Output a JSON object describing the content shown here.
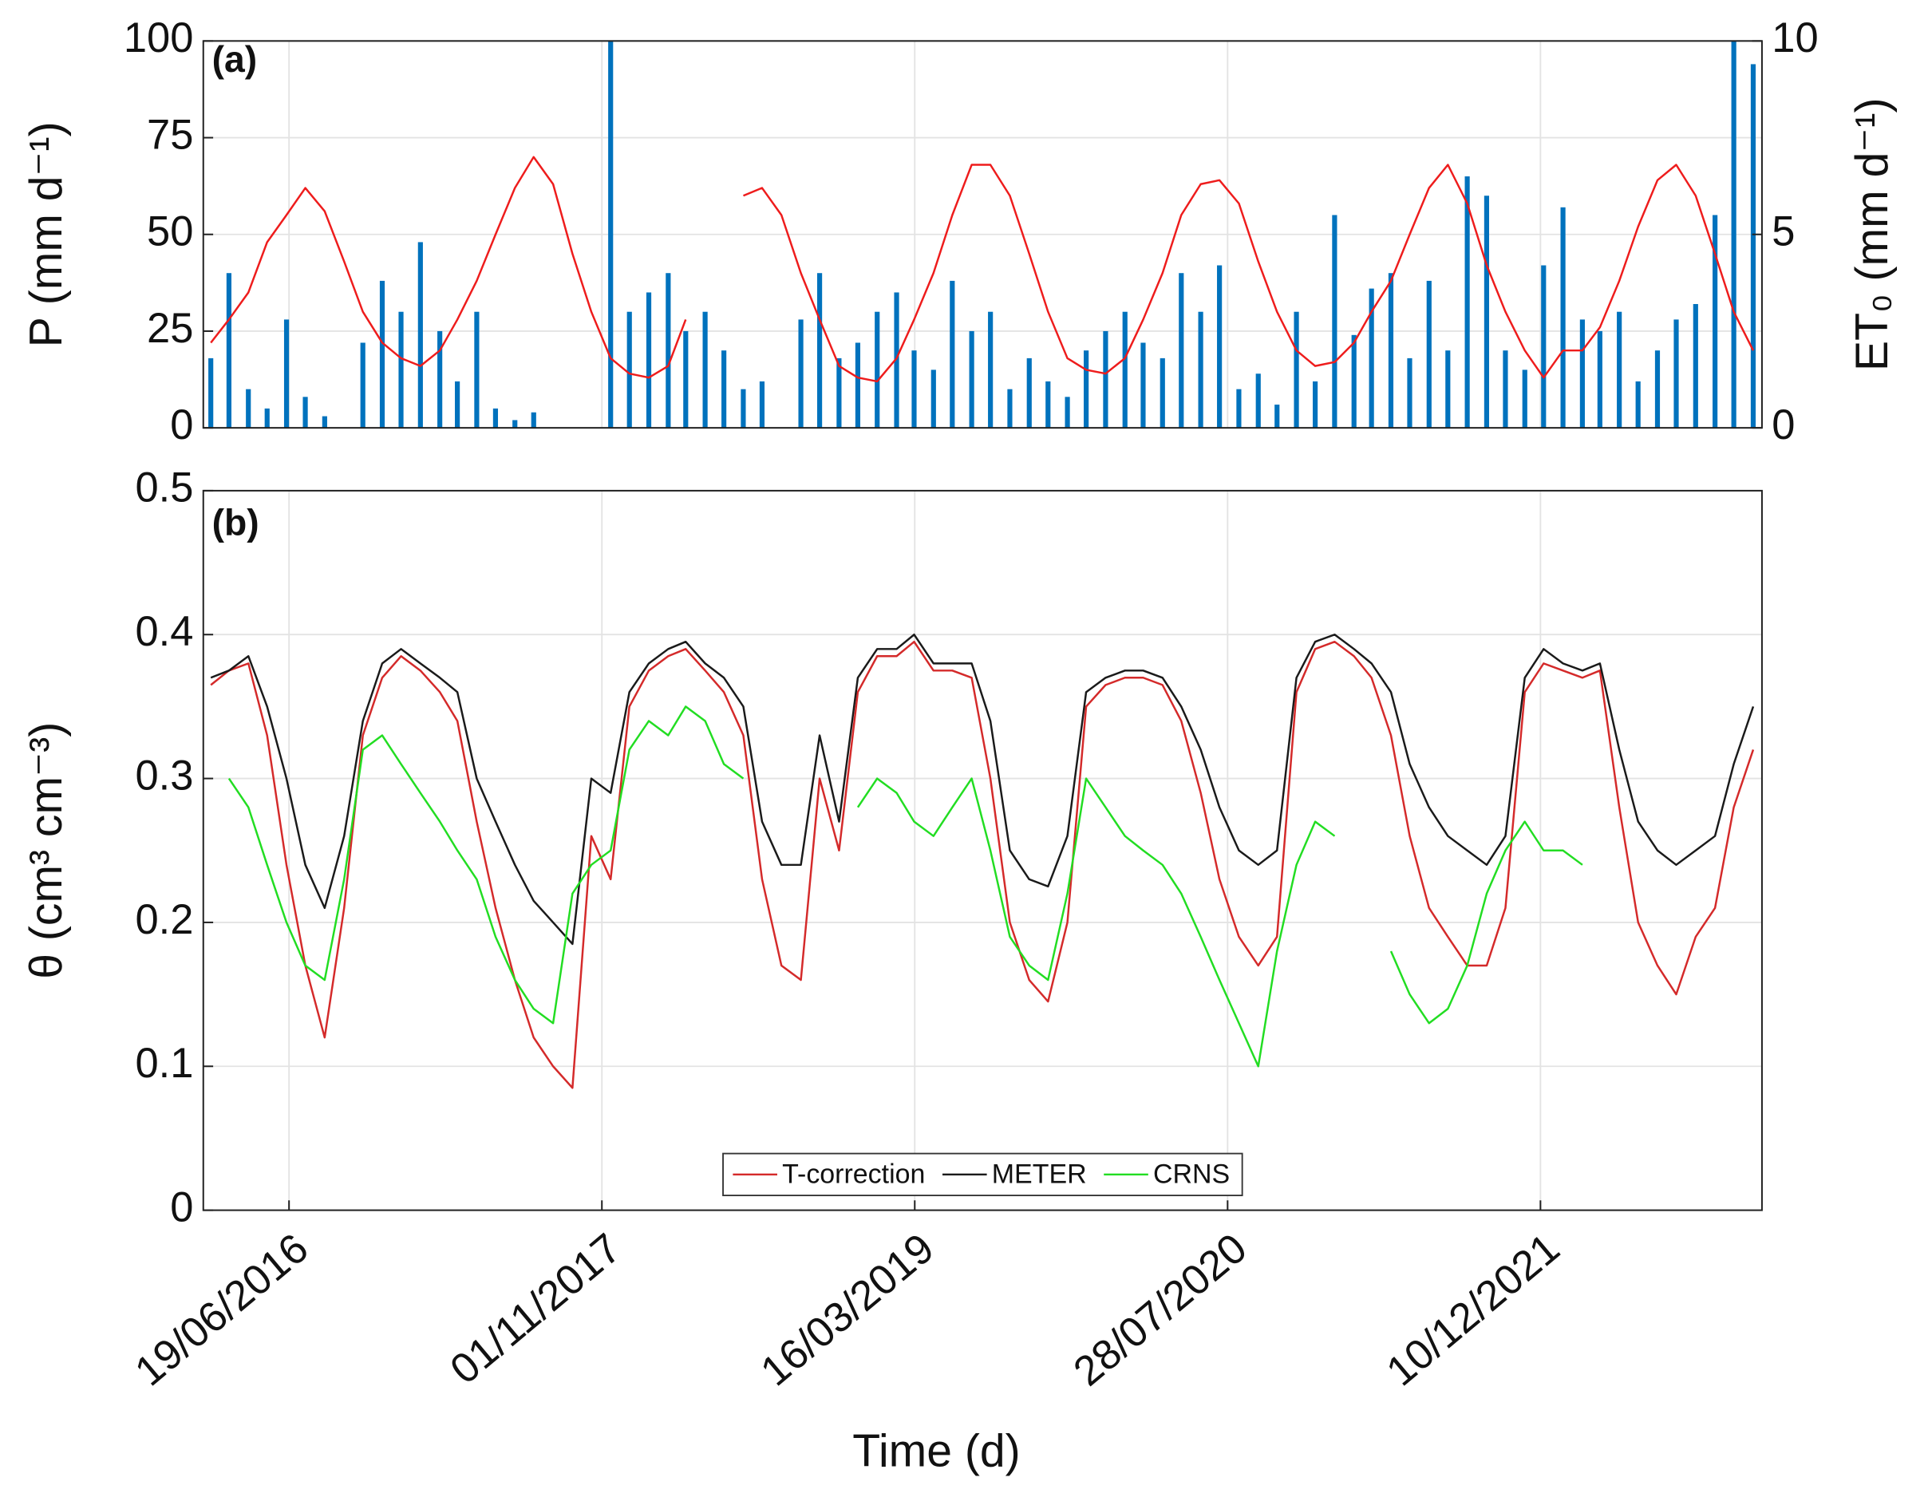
{
  "chart_data": [
    {
      "type": "bar",
      "panel_label": "(a)",
      "ylabel": "P (mm d⁻¹)",
      "y2label": "ET₀ (mm d⁻¹)",
      "x": [
        "15/02/2016",
        "15/03/2016",
        "15/04/2016",
        "15/05/2016",
        "15/06/2016",
        "15/07/2016",
        "15/08/2016",
        "15/09/2016",
        "15/10/2016",
        "15/11/2016",
        "15/12/2016",
        "15/01/2017",
        "15/02/2017",
        "15/03/2017",
        "15/04/2017",
        "15/05/2017",
        "15/06/2017",
        "15/07/2017",
        "15/08/2017",
        "15/09/2017",
        "15/10/2017",
        "15/11/2017",
        "15/12/2017",
        "15/01/2018",
        "15/02/2018",
        "15/03/2018",
        "15/04/2018",
        "15/05/2018",
        "15/06/2018",
        "15/07/2018",
        "15/08/2018",
        "15/09/2018",
        "15/10/2018",
        "15/11/2018",
        "15/12/2018",
        "15/01/2019",
        "15/02/2019",
        "15/03/2019",
        "15/04/2019",
        "15/05/2019",
        "15/06/2019",
        "15/07/2019",
        "15/08/2019",
        "15/09/2019",
        "15/10/2019",
        "15/11/2019",
        "15/12/2019",
        "15/01/2020",
        "15/02/2020",
        "15/03/2020",
        "15/04/2020",
        "15/05/2020",
        "15/06/2020",
        "15/07/2020",
        "15/08/2020",
        "15/09/2020",
        "15/10/2020",
        "15/11/2020",
        "15/12/2020",
        "15/01/2021",
        "15/02/2021",
        "15/03/2021",
        "15/04/2021",
        "15/05/2021",
        "15/06/2021",
        "15/07/2021",
        "15/08/2021",
        "15/09/2021",
        "15/10/2021",
        "15/11/2021",
        "15/12/2021",
        "15/01/2022",
        "15/02/2022",
        "15/03/2022",
        "15/04/2022",
        "15/05/2022",
        "15/06/2022",
        "15/07/2022",
        "15/08/2022",
        "15/09/2022",
        "15/10/2022",
        "15/11/2022"
      ],
      "xlim": [
        "03/02/2016",
        "29/11/2022"
      ],
      "ylim": [
        0,
        100
      ],
      "yticks": [
        0,
        25,
        50,
        75,
        100
      ],
      "y2lim": [
        0,
        10
      ],
      "y2ticks": [
        0,
        5,
        10
      ],
      "grid": true,
      "series": [
        {
          "type": "bar",
          "color": "#0072bd",
          "values": [
            18,
            40,
            10,
            5,
            28,
            8,
            3,
            0,
            22,
            38,
            30,
            48,
            25,
            12,
            30,
            5,
            2,
            4,
            0,
            0,
            0,
            100,
            30,
            35,
            40,
            25,
            30,
            20,
            10,
            12,
            0,
            28,
            40,
            18,
            22,
            30,
            35,
            20,
            15,
            38,
            25,
            30,
            10,
            18,
            12,
            8,
            20,
            25,
            30,
            22,
            18,
            40,
            30,
            42,
            10,
            14,
            6,
            30,
            12,
            55,
            24,
            36,
            40,
            18,
            38,
            20,
            65,
            60,
            20,
            15,
            42,
            57,
            28,
            25,
            30,
            12,
            20,
            28,
            32,
            55,
            100,
            94
          ]
        },
        {
          "type": "line",
          "axis": "y2",
          "color": "#ee1c1c",
          "values": [
            2.2,
            2.8,
            3.5,
            4.8,
            5.5,
            6.2,
            5.6,
            4.3,
            3.0,
            2.2,
            1.8,
            1.6,
            2.0,
            2.8,
            3.8,
            5.0,
            6.2,
            7.0,
            6.3,
            4.5,
            3.0,
            1.8,
            1.4,
            1.3,
            1.6,
            2.8,
            null,
            null,
            6.0,
            6.2,
            5.5,
            4.0,
            2.8,
            1.6,
            1.3,
            1.2,
            1.8,
            2.8,
            4.0,
            5.5,
            6.8,
            6.8,
            6.0,
            4.5,
            3.0,
            1.8,
            1.5,
            1.4,
            1.8,
            2.8,
            4.0,
            5.5,
            6.3,
            6.4,
            5.8,
            4.3,
            3.0,
            2.0,
            1.6,
            1.7,
            2.2,
            3.0,
            3.8,
            5.0,
            6.2,
            6.8,
            5.8,
            4.2,
            3.0,
            2.0,
            1.3,
            2.0,
            2.0,
            2.6,
            3.8,
            5.2,
            6.4,
            6.8,
            6.0,
            4.5,
            3.0,
            2.0
          ]
        }
      ]
    },
    {
      "type": "line",
      "panel_label": "(b)",
      "ylabel": "θ (cm³ cm⁻³)",
      "xlabel": "Time (d)",
      "x": [
        "15/02/2016",
        "15/03/2016",
        "15/04/2016",
        "15/05/2016",
        "15/06/2016",
        "15/07/2016",
        "15/08/2016",
        "15/09/2016",
        "15/10/2016",
        "15/11/2016",
        "15/12/2016",
        "15/01/2017",
        "15/02/2017",
        "15/03/2017",
        "15/04/2017",
        "15/05/2017",
        "15/06/2017",
        "15/07/2017",
        "15/08/2017",
        "15/09/2017",
        "15/10/2017",
        "15/11/2017",
        "15/12/2017",
        "15/01/2018",
        "15/02/2018",
        "15/03/2018",
        "15/04/2018",
        "15/05/2018",
        "15/06/2018",
        "15/07/2018",
        "15/08/2018",
        "15/09/2018",
        "15/10/2018",
        "15/11/2018",
        "15/12/2018",
        "15/01/2019",
        "15/02/2019",
        "15/03/2019",
        "15/04/2019",
        "15/05/2019",
        "15/06/2019",
        "15/07/2019",
        "15/08/2019",
        "15/09/2019",
        "15/10/2019",
        "15/11/2019",
        "15/12/2019",
        "15/01/2020",
        "15/02/2020",
        "15/03/2020",
        "15/04/2020",
        "15/05/2020",
        "15/06/2020",
        "15/07/2020",
        "15/08/2020",
        "15/09/2020",
        "15/10/2020",
        "15/11/2020",
        "15/12/2020",
        "15/01/2021",
        "15/02/2021",
        "15/03/2021",
        "15/04/2021",
        "15/05/2021",
        "15/06/2021",
        "15/07/2021",
        "15/08/2021",
        "15/09/2021",
        "15/10/2021",
        "15/11/2021",
        "15/12/2021",
        "15/01/2022",
        "15/02/2022",
        "15/03/2022",
        "15/04/2022",
        "15/05/2022",
        "15/06/2022",
        "15/07/2022",
        "15/08/2022",
        "15/09/2022",
        "15/10/2022",
        "15/11/2022"
      ],
      "xlim": [
        "03/02/2016",
        "29/11/2022"
      ],
      "xticks": [
        "19/06/2016",
        "01/11/2017",
        "16/03/2019",
        "28/07/2020",
        "10/12/2021"
      ],
      "ylim": [
        0,
        0.5
      ],
      "yticks": [
        0,
        0.1,
        0.2,
        0.3,
        0.4,
        0.5
      ],
      "grid": true,
      "legend": "lower center",
      "series": [
        {
          "name": "T-correction",
          "color": "#d42a2a",
          "values": [
            0.365,
            0.375,
            0.38,
            0.33,
            0.24,
            0.17,
            0.12,
            0.21,
            0.33,
            0.37,
            0.385,
            0.375,
            0.36,
            0.34,
            0.27,
            0.21,
            0.16,
            0.12,
            0.1,
            0.085,
            0.26,
            0.23,
            0.35,
            0.375,
            0.385,
            0.39,
            0.375,
            0.36,
            0.33,
            0.23,
            0.17,
            0.16,
            0.3,
            0.25,
            0.36,
            0.385,
            0.385,
            0.395,
            0.375,
            0.375,
            0.37,
            0.3,
            0.2,
            0.16,
            0.145,
            0.2,
            0.35,
            0.365,
            0.37,
            0.37,
            0.365,
            0.34,
            0.29,
            0.23,
            0.19,
            0.17,
            0.19,
            0.36,
            0.39,
            0.395,
            0.385,
            0.37,
            0.33,
            0.26,
            0.21,
            0.19,
            0.17,
            0.17,
            0.21,
            0.36,
            0.38,
            0.375,
            0.37,
            0.375,
            0.28,
            0.2,
            0.17,
            0.15,
            0.19,
            0.21,
            0.28,
            0.32
          ]
        },
        {
          "name": "METER",
          "color": "#1a1a1a",
          "values": [
            0.37,
            0.375,
            0.385,
            0.35,
            0.3,
            0.24,
            0.21,
            0.26,
            0.34,
            0.38,
            0.39,
            0.38,
            0.37,
            0.36,
            0.3,
            0.27,
            0.24,
            0.215,
            0.2,
            0.185,
            0.3,
            0.29,
            0.36,
            0.38,
            0.39,
            0.395,
            0.38,
            0.37,
            0.35,
            0.27,
            0.24,
            0.24,
            0.33,
            0.27,
            0.37,
            0.39,
            0.39,
            0.4,
            0.38,
            0.38,
            0.38,
            0.34,
            0.25,
            0.23,
            0.225,
            0.26,
            0.36,
            0.37,
            0.375,
            0.375,
            0.37,
            0.35,
            0.32,
            0.28,
            0.25,
            0.24,
            0.25,
            0.37,
            0.395,
            0.4,
            0.39,
            0.38,
            0.36,
            0.31,
            0.28,
            0.26,
            0.25,
            0.24,
            0.26,
            0.37,
            0.39,
            0.38,
            0.375,
            0.38,
            0.32,
            0.27,
            0.25,
            0.24,
            0.25,
            0.26,
            0.31,
            0.35
          ]
        },
        {
          "name": "CRNS",
          "color": "#22dd22",
          "values": [
            null,
            0.3,
            0.28,
            0.24,
            0.2,
            0.17,
            0.16,
            0.23,
            0.32,
            0.33,
            0.31,
            0.29,
            0.27,
            0.25,
            0.23,
            0.19,
            0.16,
            0.14,
            0.13,
            0.22,
            0.24,
            0.25,
            0.32,
            0.34,
            0.33,
            0.35,
            0.34,
            0.31,
            0.3,
            null,
            null,
            null,
            null,
            null,
            0.28,
            0.3,
            0.29,
            0.27,
            0.26,
            0.28,
            0.3,
            0.25,
            0.19,
            0.17,
            0.16,
            0.22,
            0.3,
            0.28,
            0.26,
            0.25,
            0.24,
            0.22,
            0.19,
            0.16,
            0.13,
            0.1,
            0.18,
            0.24,
            0.27,
            0.26,
            null,
            null,
            0.18,
            0.15,
            0.13,
            0.14,
            0.17,
            0.22,
            0.25,
            0.27,
            0.25,
            0.25,
            0.24,
            null,
            null,
            null,
            null,
            null,
            null,
            null,
            null,
            null
          ]
        }
      ]
    }
  ]
}
